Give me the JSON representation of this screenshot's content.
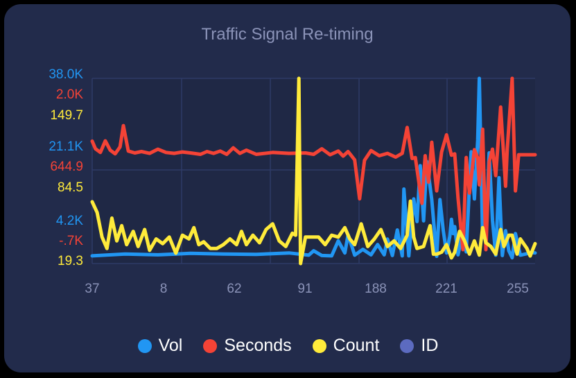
{
  "chart_data": {
    "type": "line",
    "title": "Traffic Signal Re-timing",
    "x_tick_labels": [
      "37",
      "8",
      "62",
      "91",
      "188",
      "221",
      "255"
    ],
    "x_count": 222,
    "grid": true,
    "legend_placement": "bottom",
    "y_axes": [
      {
        "series": "Vol",
        "color": "#2196f3",
        "tick_labels": [
          "4.2K",
          "21.1K",
          "38.0K"
        ],
        "range": [
          -12700,
          38000
        ]
      },
      {
        "series": "Seconds",
        "color": "#f44336",
        "tick_labels": [
          "-.7K",
          "644.9",
          "2.0K"
        ],
        "range": [
          -2000,
          2000
        ]
      },
      {
        "series": "Count",
        "color": "#ffeb3b",
        "tick_labels": [
          "19.3",
          "84.5",
          "149.7"
        ],
        "range": [
          -46,
          149.7
        ]
      }
    ],
    "series": [
      {
        "name": "Vol",
        "color": "#2196f3",
        "points": [
          [
            0,
            -10600
          ],
          [
            20,
            -10100
          ],
          [
            40,
            -10300
          ],
          [
            60,
            -9900
          ],
          [
            80,
            -10100
          ],
          [
            100,
            -10200
          ],
          [
            120,
            -9800
          ],
          [
            132,
            -10400
          ],
          [
            135,
            -9200
          ],
          [
            140,
            -10500
          ],
          [
            146,
            -10600
          ],
          [
            150,
            -6500
          ],
          [
            154,
            -9800
          ],
          [
            156,
            -4800
          ],
          [
            160,
            -10400
          ],
          [
            165,
            -8800
          ],
          [
            170,
            -10300
          ],
          [
            174,
            -7500
          ],
          [
            178,
            -10300
          ],
          [
            180,
            -6000
          ],
          [
            183,
            -10500
          ],
          [
            186,
            -3500
          ],
          [
            189,
            -10600
          ],
          [
            190,
            7700
          ],
          [
            193,
            -10600
          ],
          [
            196,
            5000
          ],
          [
            198,
            -1200
          ],
          [
            200,
            14100
          ],
          [
            202,
            -1000
          ],
          [
            204,
            15200
          ],
          [
            207,
            4800
          ],
          [
            210,
            -10700
          ],
          [
            212,
            4800
          ],
          [
            214,
            -3600
          ],
          [
            216,
            -9800
          ],
          [
            218,
            -5300
          ],
          [
            219,
            -600
          ],
          [
            220,
            -4500
          ],
          [
            221,
            -2600
          ],
          [
            223,
            -10300
          ],
          [
            226,
            -3800
          ],
          [
            228,
            -9500
          ],
          [
            231,
            17900
          ],
          [
            233,
            5000
          ],
          [
            235,
            21100
          ],
          [
            236,
            38000
          ],
          [
            238,
            -5400
          ],
          [
            240,
            -6000
          ],
          [
            242,
            17600
          ],
          [
            244,
            -800
          ],
          [
            246,
            -10400
          ],
          [
            248,
            10800
          ],
          [
            250,
            -10500
          ],
          [
            252,
            -3700
          ],
          [
            254,
            -9200
          ],
          [
            256,
            -11100
          ],
          [
            258,
            -4500
          ],
          [
            261,
            -10400
          ],
          [
            263,
            -10200
          ],
          [
            266,
            -9900
          ],
          [
            268,
            -9700
          ],
          [
            270,
            -9800
          ]
        ]
      },
      {
        "name": "Seconds",
        "color": "#f44336",
        "points": [
          [
            0,
            644.9
          ],
          [
            2,
            480
          ],
          [
            5,
            400
          ],
          [
            8,
            650
          ],
          [
            11,
            450
          ],
          [
            14,
            370
          ],
          [
            17,
            520
          ],
          [
            19,
            980
          ],
          [
            22,
            430
          ],
          [
            26,
            390
          ],
          [
            30,
            420
          ],
          [
            35,
            380
          ],
          [
            40,
            470
          ],
          [
            45,
            400
          ],
          [
            50,
            380
          ],
          [
            55,
            410
          ],
          [
            60,
            390
          ],
          [
            66,
            360
          ],
          [
            70,
            420
          ],
          [
            74,
            380
          ],
          [
            78,
            430
          ],
          [
            82,
            360
          ],
          [
            86,
            500
          ],
          [
            90,
            380
          ],
          [
            94,
            450
          ],
          [
            100,
            360
          ],
          [
            110,
            400
          ],
          [
            120,
            380
          ],
          [
            130,
            390
          ],
          [
            135,
            360
          ],
          [
            140,
            480
          ],
          [
            145,
            350
          ],
          [
            150,
            430
          ],
          [
            153,
            320
          ],
          [
            156,
            420
          ],
          [
            160,
            240
          ],
          [
            163,
            -600
          ],
          [
            166,
            230
          ],
          [
            170,
            440
          ],
          [
            175,
            330
          ],
          [
            180,
            380
          ],
          [
            185,
            300
          ],
          [
            189,
            380
          ],
          [
            192,
            940
          ],
          [
            195,
            270
          ],
          [
            197,
            290
          ],
          [
            201,
            -700
          ],
          [
            203,
            330
          ],
          [
            205,
            -240
          ],
          [
            207,
            620
          ],
          [
            210,
            -430
          ],
          [
            213,
            410
          ],
          [
            216,
            780
          ],
          [
            219,
            340
          ],
          [
            221,
            370
          ],
          [
            223,
            -580
          ],
          [
            226,
            -1700
          ],
          [
            228,
            290
          ],
          [
            230,
            -480
          ],
          [
            233,
            460
          ],
          [
            235,
            280
          ],
          [
            236,
            -300
          ],
          [
            238,
            900
          ],
          [
            240,
            -1700
          ],
          [
            242,
            200
          ],
          [
            244,
            470
          ],
          [
            246,
            -100
          ],
          [
            249,
            1380
          ],
          [
            252,
            -330
          ],
          [
            253,
            470
          ],
          [
            256,
            2000
          ],
          [
            258,
            -430
          ],
          [
            260,
            350
          ],
          [
            270,
            350
          ]
        ]
      },
      {
        "name": "Count",
        "color": "#ffeb3b",
        "points": [
          [
            0,
            19.3
          ],
          [
            3,
            8
          ],
          [
            6,
            -18
          ],
          [
            9,
            -30
          ],
          [
            12,
            2
          ],
          [
            15,
            -22
          ],
          [
            18,
            -6
          ],
          [
            21,
            -26
          ],
          [
            25,
            -12
          ],
          [
            28,
            -28
          ],
          [
            32,
            -10
          ],
          [
            35,
            -32
          ],
          [
            39,
            -20
          ],
          [
            43,
            -25
          ],
          [
            47,
            -18
          ],
          [
            51,
            -35
          ],
          [
            55,
            -16
          ],
          [
            59,
            -20
          ],
          [
            62,
            -8
          ],
          [
            65,
            -26
          ],
          [
            68,
            -23
          ],
          [
            72,
            -30
          ],
          [
            76,
            -30
          ],
          [
            80,
            -26
          ],
          [
            84,
            -20
          ],
          [
            88,
            -26
          ],
          [
            91,
            -12
          ],
          [
            94,
            -26
          ],
          [
            98,
            -16
          ],
          [
            102,
            -24
          ],
          [
            106,
            -10
          ],
          [
            110,
            -4
          ],
          [
            114,
            -22
          ],
          [
            118,
            -28
          ],
          [
            122,
            -14
          ],
          [
            124,
            -16
          ],
          [
            126,
            149.7
          ],
          [
            127,
            -46
          ],
          [
            130,
            -18
          ],
          [
            134,
            -18
          ],
          [
            138,
            -18
          ],
          [
            142,
            -26
          ],
          [
            146,
            -16
          ],
          [
            150,
            -18
          ],
          [
            154,
            -8
          ],
          [
            157,
            -20
          ],
          [
            160,
            -26
          ],
          [
            164,
            -4
          ],
          [
            168,
            -28
          ],
          [
            172,
            -20
          ],
          [
            176,
            -10
          ],
          [
            180,
            -28
          ],
          [
            184,
            -22
          ],
          [
            188,
            -30
          ],
          [
            192,
            -16
          ],
          [
            194,
            20
          ],
          [
            196,
            -18
          ],
          [
            198,
            -30
          ],
          [
            202,
            -28
          ],
          [
            206,
            -6
          ],
          [
            208,
            -36
          ],
          [
            210,
            -36
          ],
          [
            213,
            -34
          ],
          [
            216,
            -26
          ],
          [
            219,
            -40
          ],
          [
            221,
            -34
          ],
          [
            224,
            -12
          ],
          [
            227,
            -22
          ],
          [
            230,
            -36
          ],
          [
            233,
            -22
          ],
          [
            236,
            -37
          ],
          [
            238,
            -8
          ],
          [
            240,
            -24
          ],
          [
            243,
            -28
          ],
          [
            246,
            -36
          ],
          [
            249,
            -10
          ],
          [
            251,
            -28
          ],
          [
            254,
            -16
          ],
          [
            256,
            -16
          ],
          [
            259,
            -36
          ],
          [
            261,
            -20
          ],
          [
            265,
            -30
          ],
          [
            267,
            -38
          ],
          [
            270,
            -25
          ]
        ]
      },
      {
        "name": "ID",
        "color": "#5c6bc0",
        "points": []
      }
    ]
  },
  "legend": [
    {
      "label": "Vol",
      "color": "#2196f3"
    },
    {
      "label": "Seconds",
      "color": "#f44336"
    },
    {
      "label": "Count",
      "color": "#ffeb3b"
    },
    {
      "label": "ID",
      "color": "#5c6bc0"
    }
  ]
}
